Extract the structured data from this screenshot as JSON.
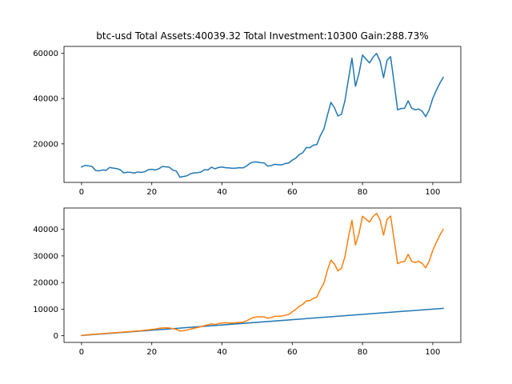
{
  "title": "btc-usd Total Assets:40039.32  Total Investment:10300  Gain:288.73%",
  "chart_data": [
    {
      "type": "line",
      "xlim": [
        -5,
        108
      ],
      "ylim": [
        3000,
        63000
      ],
      "xticks": [
        0,
        20,
        40,
        60,
        80,
        100
      ],
      "yticks": [
        20000,
        40000,
        60000
      ],
      "grid": false,
      "series": [
        {
          "color": "#1f77b4",
          "x_start": 0,
          "values": [
            9800,
            10500,
            10300,
            10000,
            8200,
            8100,
            8500,
            8300,
            9600,
            9300,
            9100,
            8600,
            7200,
            7500,
            7400,
            7100,
            7600,
            7400,
            7700,
            8600,
            8800,
            8500,
            9000,
            10000,
            9900,
            9700,
            8400,
            8000,
            5300,
            5600,
            5900,
            6800,
            7200,
            7300,
            7600,
            8600,
            8500,
            9700,
            9000,
            9600,
            9800,
            9500,
            9400,
            9200,
            9300,
            9500,
            9400,
            10200,
            11500,
            12000,
            12000,
            11700,
            11600,
            10200,
            10400,
            11000,
            10800,
            10700,
            11300,
            11600,
            12800,
            13700,
            15300,
            16100,
            18400,
            18300,
            19400,
            19700,
            23600,
            26500,
            32500,
            38300,
            36000,
            32300,
            33000,
            39000,
            48500,
            57800,
            45400,
            51000,
            59200,
            57400,
            55700,
            58200,
            59900,
            56600,
            49200,
            56900,
            58500,
            47000,
            35000,
            35600,
            35700,
            39000,
            35800,
            35000,
            35400,
            34400,
            32000,
            35000,
            40000,
            43500,
            46700,
            49300
          ]
        }
      ]
    },
    {
      "type": "line",
      "xlim": [
        -5,
        108
      ],
      "ylim": [
        -2500,
        48000
      ],
      "xticks": [
        0,
        20,
        40,
        60,
        80,
        100
      ],
      "yticks": [
        0,
        10000,
        20000,
        30000,
        40000
      ],
      "grid": false,
      "series": [
        {
          "color": "#1f77b4",
          "x": [
            0,
            103
          ],
          "values": [
            100,
            10300
          ]
        },
        {
          "color": "#ff7f0e",
          "x_start": 0,
          "values": [
            100,
            300,
            400,
            500,
            600,
            700,
            800,
            900,
            1000,
            1100,
            1200,
            1300,
            1400,
            1500,
            1600,
            1700,
            1800,
            1900,
            2100,
            2200,
            2400,
            2500,
            2800,
            2900,
            3000,
            2900,
            2700,
            2400,
            1800,
            1900,
            2100,
            2500,
            2800,
            3100,
            3400,
            3800,
            4100,
            4500,
            4200,
            4600,
            4800,
            4900,
            4800,
            4800,
            4900,
            5000,
            5100,
            5600,
            6300,
            6900,
            7100,
            7100,
            7100,
            6600,
            6800,
            7300,
            7300,
            7400,
            7700,
            8000,
            9000,
            9900,
            11100,
            11800,
            13100,
            13200,
            14000,
            14500,
            17400,
            19700,
            24500,
            28400,
            27000,
            24400,
            25300,
            29700,
            37000,
            43400,
            34100,
            38400,
            44900,
            43800,
            42700,
            44800,
            46000,
            43600,
            37800,
            43700,
            45000,
            36200,
            27100,
            27700,
            27900,
            30600,
            28000,
            27500,
            28000,
            27200,
            25500,
            28000,
            32000,
            35000,
            37700,
            40000
          ]
        }
      ]
    }
  ]
}
